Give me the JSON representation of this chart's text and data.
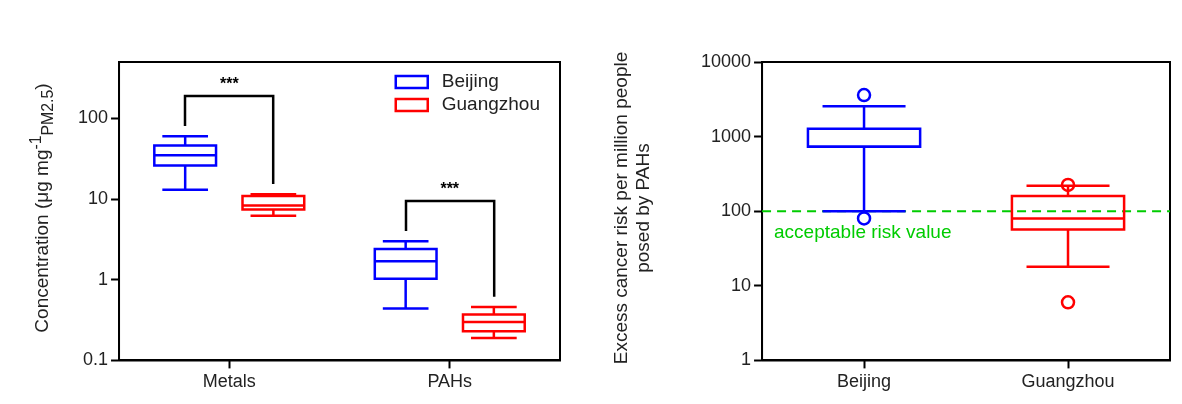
{
  "chart_data": [
    {
      "type": "box",
      "categories": [
        "Metals",
        "PAHs"
      ],
      "ylabel": "Concentration (μg mg$^{-1}$$_{PM2.5}$)",
      "log": true,
      "ylim": [
        0.1,
        500
      ],
      "yticks": [
        0.1,
        1,
        10,
        100
      ],
      "grid": false,
      "legend": "top right",
      "series": [
        {
          "name": "Beijing",
          "color": "#0000ff",
          "boxes": [
            {
              "low": 13,
              "q1": 26,
              "median": 35,
              "q3": 46,
              "high": 60
            },
            {
              "low": 0.44,
              "q1": 1.03,
              "median": 1.7,
              "q3": 2.4,
              "high": 3.0
            }
          ]
        },
        {
          "name": "Guangzhou",
          "color": "#ff0000",
          "boxes": [
            {
              "low": 6.2,
              "q1": 7.4,
              "median": 8.3,
              "q3": 10.9,
              "high": 11.5
            },
            {
              "low": 0.19,
              "q1": 0.23,
              "median": 0.3,
              "q3": 0.37,
              "high": 0.46
            }
          ]
        }
      ],
      "annotations": [
        "***",
        "***"
      ]
    },
    {
      "type": "box",
      "categories": [
        "Beijing",
        "Guangzhou"
      ],
      "ylabel": "Excess cancer risk per million people posed by PAHs",
      "log": true,
      "ylim": [
        1,
        10000
      ],
      "yticks": [
        1,
        10,
        100,
        1000,
        10000
      ],
      "grid": false,
      "colors": [
        "#0000ff",
        "#ff0000"
      ],
      "boxes": [
        {
          "low": 100,
          "q1": 730,
          "median": 730,
          "q3": 1270,
          "high": 2550,
          "outliers": [
            3600,
            80
          ]
        },
        {
          "low": 18,
          "q1": 57,
          "median": 80,
          "q3": 160,
          "high": 220,
          "outliers": [
            225,
            6
          ]
        }
      ],
      "ref_lines": [
        {
          "axis": "y",
          "value": 100,
          "label": "acceptable risk value",
          "color": "#00cc00",
          "line_style": "dashed"
        }
      ]
    }
  ]
}
